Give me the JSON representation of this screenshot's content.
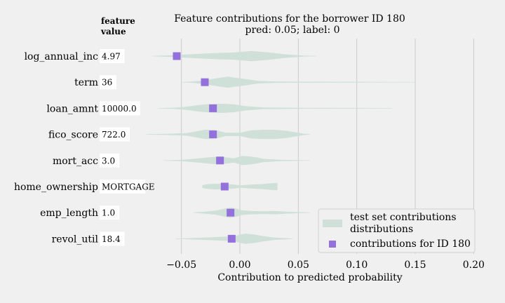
{
  "chart_data": {
    "type": "scatter",
    "title": "Feature contributions for the borrower ID 180",
    "subtitle": "pred: 0.05; label: 0",
    "xlabel": "Contribution to predicted probability",
    "value_header": [
      "feature",
      "value"
    ],
    "xlim": [
      -0.09,
      0.21
    ],
    "xticks": [
      -0.05,
      0.0,
      0.05,
      0.1,
      0.15,
      0.2
    ],
    "xtick_labels": [
      "−0.05",
      "0.00",
      "0.05",
      "0.10",
      "0.15",
      "0.20"
    ],
    "grid": true,
    "legend_position": "lower-right",
    "categories": [
      "log_annual_inc",
      "term",
      "loan_amnt",
      "fico_score",
      "mort_acc",
      "home_ownership",
      "emp_length",
      "revol_util"
    ],
    "feature_values": [
      "4.97",
      "36",
      "10000.0",
      "722.0",
      "3.0",
      "MORTGAGE",
      "1.0",
      "18.4"
    ],
    "series": [
      {
        "name": "test set contributions\ndistributions",
        "kind": "violin",
        "color": "#cfe0d8",
        "distributions": [
          [
            [
              -0.075,
              0.0
            ],
            [
              -0.06,
              0.06
            ],
            [
              -0.04,
              0.18
            ],
            [
              -0.02,
              0.3
            ],
            [
              -0.005,
              0.35
            ],
            [
              0.01,
              0.5
            ],
            [
              0.025,
              0.35
            ],
            [
              0.04,
              0.15
            ],
            [
              0.055,
              0.03
            ],
            [
              0.065,
              0.0
            ]
          ],
          [
            [
              -0.05,
              0.0
            ],
            [
              -0.04,
              0.05
            ],
            [
              -0.03,
              0.18
            ],
            [
              -0.02,
              0.38
            ],
            [
              -0.01,
              0.55
            ],
            [
              -0.005,
              0.45
            ],
            [
              0.005,
              0.3
            ],
            [
              0.015,
              0.12
            ],
            [
              0.03,
              0.05
            ],
            [
              0.06,
              0.03
            ],
            [
              0.1,
              0.02
            ],
            [
              0.15,
              0.0
            ]
          ],
          [
            [
              -0.07,
              0.0
            ],
            [
              -0.055,
              0.05
            ],
            [
              -0.045,
              0.15
            ],
            [
              -0.035,
              0.32
            ],
            [
              -0.025,
              0.42
            ],
            [
              -0.015,
              0.45
            ],
            [
              -0.005,
              0.38
            ],
            [
              0.005,
              0.2
            ],
            [
              0.02,
              0.07
            ],
            [
              0.05,
              0.03
            ],
            [
              0.1,
              0.02
            ],
            [
              0.13,
              0.0
            ]
          ],
          [
            [
              -0.08,
              0.0
            ],
            [
              -0.06,
              0.05
            ],
            [
              -0.045,
              0.12
            ],
            [
              -0.03,
              0.45
            ],
            [
              -0.022,
              0.45
            ],
            [
              -0.012,
              0.15
            ],
            [
              0.0,
              0.15
            ],
            [
              0.01,
              0.4
            ],
            [
              0.02,
              0.45
            ],
            [
              0.03,
              0.45
            ],
            [
              0.04,
              0.35
            ],
            [
              0.05,
              0.15
            ],
            [
              0.055,
              0.05
            ],
            [
              0.06,
              0.0
            ]
          ],
          [
            [
              -0.065,
              0.0
            ],
            [
              -0.05,
              0.05
            ],
            [
              -0.035,
              0.2
            ],
            [
              -0.022,
              0.35
            ],
            [
              -0.012,
              0.3
            ],
            [
              -0.005,
              0.2
            ],
            [
              0.002,
              0.45
            ],
            [
              0.008,
              0.4
            ],
            [
              0.015,
              0.28
            ],
            [
              0.02,
              0.15
            ],
            [
              0.035,
              0.05
            ],
            [
              0.06,
              0.0
            ]
          ],
          [
            [
              -0.032,
              0.12
            ],
            [
              -0.028,
              0.22
            ],
            [
              -0.02,
              0.28
            ],
            [
              -0.012,
              0.25
            ],
            [
              -0.005,
              0.18
            ],
            [
              0.0,
              0.1
            ],
            [
              0.005,
              0.14
            ],
            [
              0.012,
              0.2
            ],
            [
              0.02,
              0.25
            ],
            [
              0.025,
              0.3
            ],
            [
              0.03,
              0.35
            ],
            [
              0.032,
              0.35
            ]
          ],
          [
            [
              -0.04,
              0.0
            ],
            [
              -0.03,
              0.08
            ],
            [
              -0.02,
              0.2
            ],
            [
              -0.012,
              0.42
            ],
            [
              -0.008,
              0.5
            ],
            [
              -0.004,
              0.42
            ],
            [
              0.002,
              0.22
            ],
            [
              0.01,
              0.15
            ],
            [
              0.02,
              0.12
            ],
            [
              0.03,
              0.15
            ],
            [
              0.04,
              0.08
            ],
            [
              0.06,
              0.0
            ]
          ],
          [
            [
              -0.055,
              0.0
            ],
            [
              -0.045,
              0.04
            ],
            [
              -0.03,
              0.1
            ],
            [
              -0.015,
              0.18
            ],
            [
              -0.005,
              0.22
            ],
            [
              0.0,
              0.4
            ],
            [
              0.005,
              0.5
            ],
            [
              0.012,
              0.42
            ],
            [
              0.02,
              0.25
            ],
            [
              0.03,
              0.1
            ],
            [
              0.04,
              0.04
            ],
            [
              0.045,
              0.0
            ]
          ]
        ]
      },
      {
        "name": "contributions for ID 180",
        "kind": "point",
        "marker": "square",
        "color": "#9370db",
        "values": [
          -0.054,
          -0.03,
          -0.023,
          -0.023,
          -0.017,
          -0.013,
          -0.008,
          -0.007
        ]
      }
    ]
  }
}
